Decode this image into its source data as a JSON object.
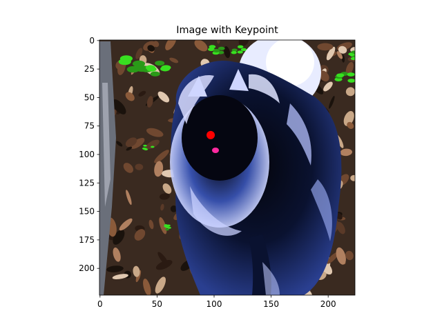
{
  "chart_data": {
    "type": "scatter",
    "title": "Image with Keypoint",
    "xlabel": "",
    "ylabel": "",
    "xlim": [
      -0.5,
      223.5
    ],
    "ylim": [
      223.5,
      -0.5
    ],
    "y_inverted": true,
    "grid": false,
    "xticks": [
      0,
      50,
      100,
      150,
      200
    ],
    "yticks": [
      0,
      25,
      50,
      75,
      100,
      125,
      150,
      175,
      200
    ],
    "background_image": "dog-photo",
    "image_size": [
      224,
      224
    ],
    "series": [
      {
        "x": [
          97
        ],
        "y": [
          83
        ],
        "color": "#ff0000"
      }
    ]
  },
  "colors": {
    "keypoint": "#ff0000",
    "foliage": "#3a2a20",
    "dog_dark": "#060814",
    "dog_fur_light": "#c8d0ff",
    "dog_fur_mid": "#3050b0",
    "leaf_green": "#38e020",
    "tongue": "#ff2aa0"
  }
}
